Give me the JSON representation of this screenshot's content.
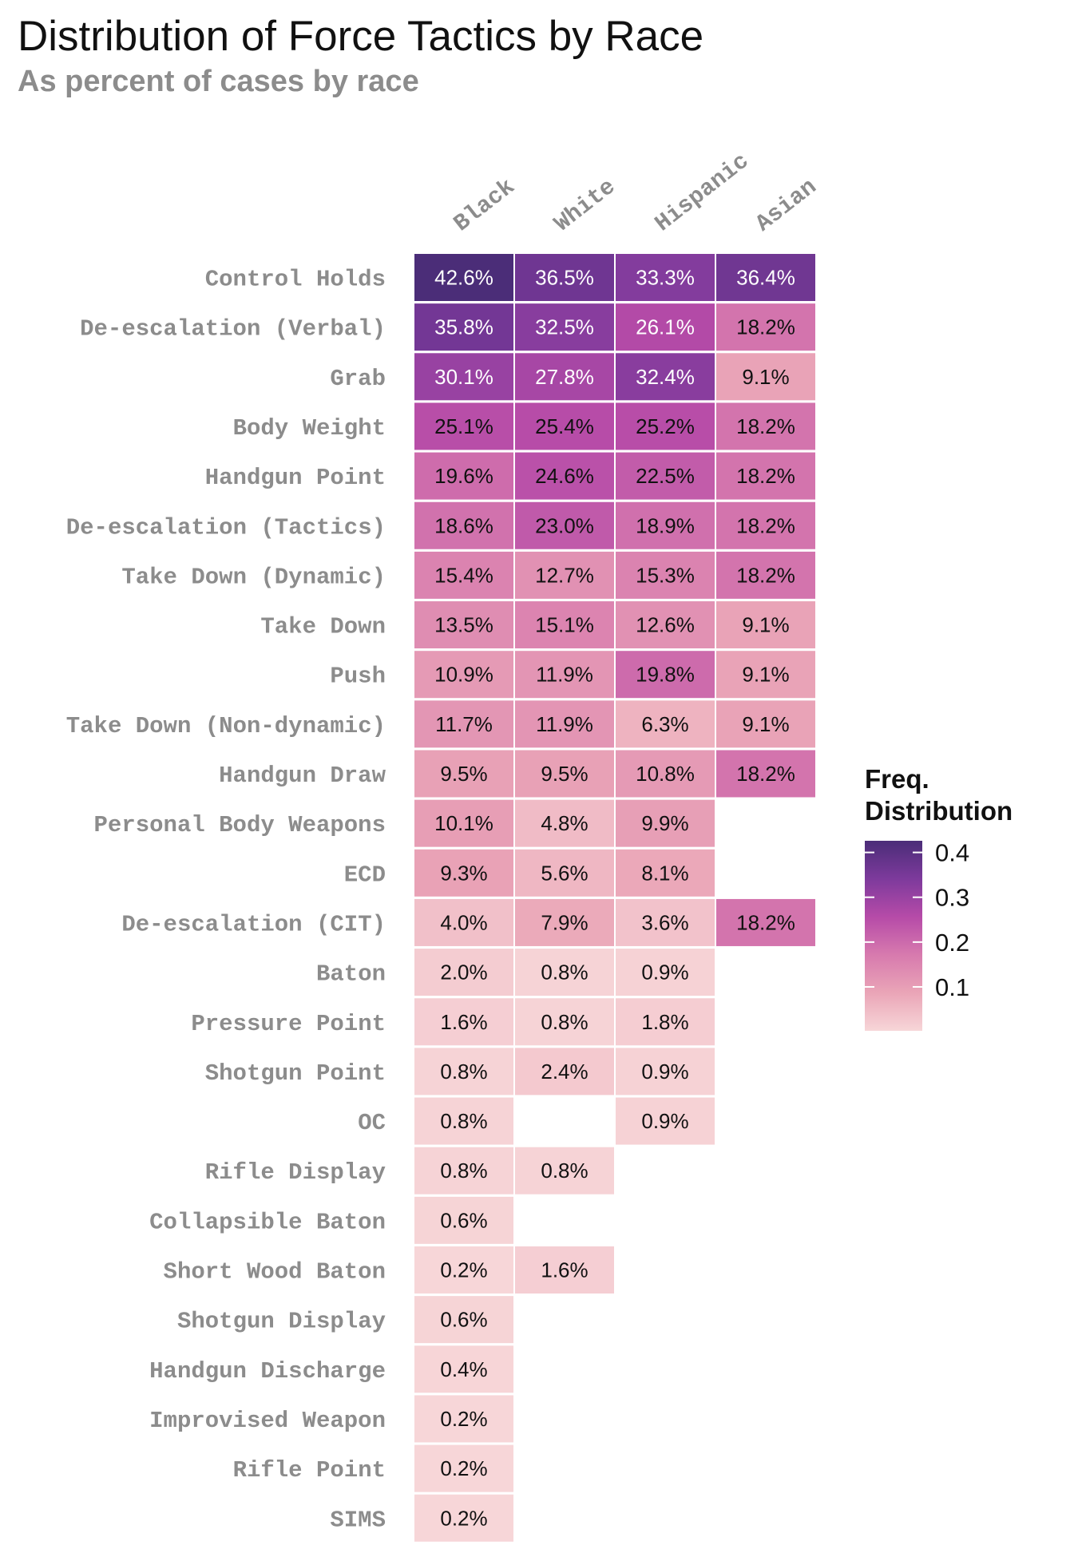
{
  "chart_data": {
    "type": "heatmap",
    "title": "Distribution of Force Tactics by Race",
    "subtitle": "As percent of cases by race",
    "columns": [
      "Black",
      "White",
      "Hispanic",
      "Asian"
    ],
    "rows": [
      "Control Holds",
      "De-escalation (Verbal)",
      "Grab",
      "Body Weight",
      "Handgun Point",
      "De-escalation (Tactics)",
      "Take Down (Dynamic)",
      "Take Down",
      "Push",
      "Take Down (Non-dynamic)",
      "Handgun Draw",
      "Personal Body Weapons",
      "ECD",
      "De-escalation (CIT)",
      "Baton",
      "Pressure Point",
      "Shotgun Point",
      "OC",
      "Rifle Display",
      "Collapsible Baton",
      "Short Wood Baton",
      "Shotgun Display",
      "Handgun Discharge",
      "Improvised Weapon",
      "Rifle Point",
      "SIMS"
    ],
    "values": [
      [
        0.426,
        0.365,
        0.333,
        0.364
      ],
      [
        0.358,
        0.325,
        0.261,
        0.182
      ],
      [
        0.301,
        0.278,
        0.324,
        0.091
      ],
      [
        0.251,
        0.254,
        0.252,
        0.182
      ],
      [
        0.196,
        0.246,
        0.225,
        0.182
      ],
      [
        0.186,
        0.23,
        0.189,
        0.182
      ],
      [
        0.154,
        0.127,
        0.153,
        0.182
      ],
      [
        0.135,
        0.151,
        0.126,
        0.091
      ],
      [
        0.109,
        0.119,
        0.198,
        0.091
      ],
      [
        0.117,
        0.119,
        0.063,
        0.091
      ],
      [
        0.095,
        0.095,
        0.108,
        0.182
      ],
      [
        0.101,
        0.048,
        0.099,
        null
      ],
      [
        0.093,
        0.056,
        0.081,
        null
      ],
      [
        0.04,
        0.079,
        0.036,
        0.182
      ],
      [
        0.02,
        0.008,
        0.009,
        null
      ],
      [
        0.016,
        0.008,
        0.018,
        null
      ],
      [
        0.008,
        0.024,
        0.009,
        null
      ],
      [
        0.008,
        null,
        0.009,
        null
      ],
      [
        0.008,
        0.008,
        null,
        null
      ],
      [
        0.006,
        null,
        null,
        null
      ],
      [
        0.002,
        0.016,
        null,
        null
      ],
      [
        0.006,
        null,
        null,
        null
      ],
      [
        0.004,
        null,
        null,
        null
      ],
      [
        0.002,
        null,
        null,
        null
      ],
      [
        0.002,
        null,
        null,
        null
      ],
      [
        0.002,
        null,
        null,
        null
      ]
    ],
    "labels": [
      [
        "42.6%",
        "36.5%",
        "33.3%",
        "36.4%"
      ],
      [
        "35.8%",
        "32.5%",
        "26.1%",
        "18.2%"
      ],
      [
        "30.1%",
        "27.8%",
        "32.4%",
        "9.1%"
      ],
      [
        "25.1%",
        "25.4%",
        "25.2%",
        "18.2%"
      ],
      [
        "19.6%",
        "24.6%",
        "22.5%",
        "18.2%"
      ],
      [
        "18.6%",
        "23.0%",
        "18.9%",
        "18.2%"
      ],
      [
        "15.4%",
        "12.7%",
        "15.3%",
        "18.2%"
      ],
      [
        "13.5%",
        "15.1%",
        "12.6%",
        "9.1%"
      ],
      [
        "10.9%",
        "11.9%",
        "19.8%",
        "9.1%"
      ],
      [
        "11.7%",
        "11.9%",
        "6.3%",
        "9.1%"
      ],
      [
        "9.5%",
        "9.5%",
        "10.8%",
        "18.2%"
      ],
      [
        "10.1%",
        "4.8%",
        "9.9%",
        null
      ],
      [
        "9.3%",
        "5.6%",
        "8.1%",
        null
      ],
      [
        "4.0%",
        "7.9%",
        "3.6%",
        "18.2%"
      ],
      [
        "2.0%",
        "0.8%",
        "0.9%",
        null
      ],
      [
        "1.6%",
        "0.8%",
        "1.8%",
        null
      ],
      [
        "0.8%",
        "2.4%",
        "0.9%",
        null
      ],
      [
        "0.8%",
        null,
        "0.9%",
        null
      ],
      [
        "0.8%",
        "0.8%",
        null,
        null
      ],
      [
        "0.6%",
        null,
        null,
        null
      ],
      [
        "0.2%",
        "1.6%",
        null,
        null
      ],
      [
        "0.6%",
        null,
        null,
        null
      ],
      [
        "0.4%",
        null,
        null,
        null
      ],
      [
        "0.2%",
        null,
        null,
        null
      ],
      [
        "0.2%",
        null,
        null,
        null
      ],
      [
        "0.2%",
        null,
        null,
        null
      ]
    ],
    "legend": {
      "title_line1": "Freq.",
      "title_line2": "Distribution",
      "ticks": [
        0.1,
        0.2,
        0.3,
        0.4
      ],
      "tick_labels": [
        "0.1",
        "0.2",
        "0.3",
        "0.4"
      ],
      "range": [
        0.002,
        0.426
      ],
      "placement": "right"
    },
    "colors": {
      "scale": [
        "#f7d6d8",
        "#eaa5b7",
        "#d77aae",
        "#b64ba8",
        "#7d3a9c",
        "#4b2d78"
      ],
      "text_dark": "#111111",
      "text_light": "#ffffff",
      "cell_border": "#ffffff"
    },
    "grid": false
  }
}
